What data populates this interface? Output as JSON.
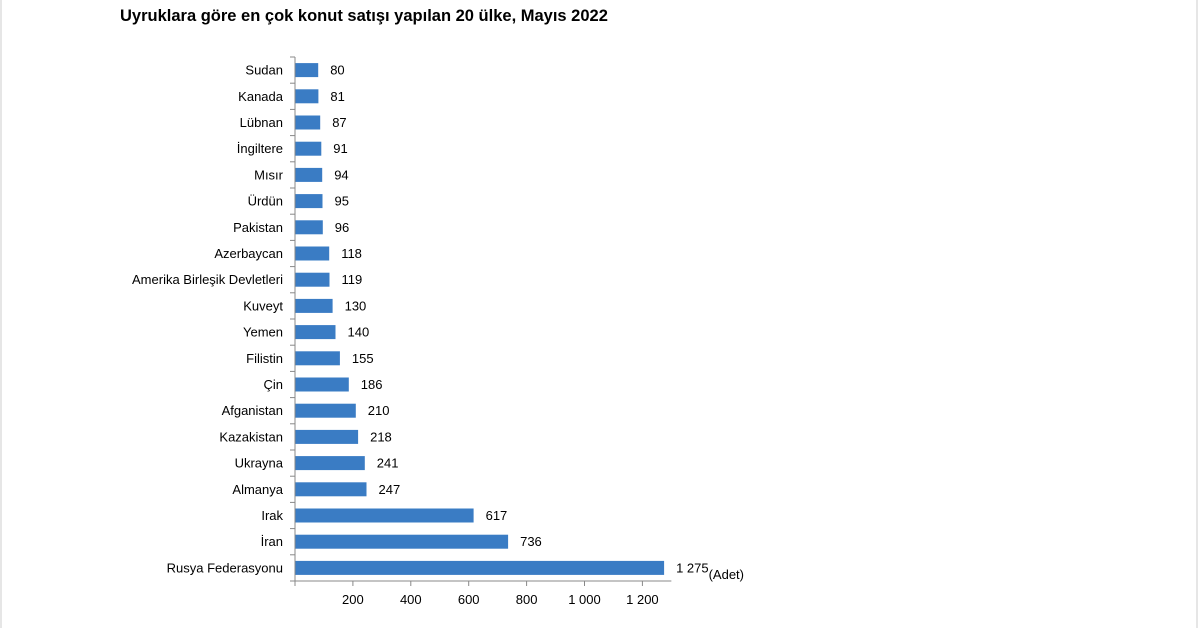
{
  "chart_data": {
    "type": "bar",
    "orientation": "horizontal",
    "title": "Uyruklara göre en çok konut satışı yapılan 20 ülke, Mayıs 2022",
    "unit": "(Adet)",
    "categories": [
      "Sudan",
      "Kanada",
      "Lübnan",
      "İngiltere",
      "Mısır",
      "Ürdün",
      "Pakistan",
      "Azerbaycan",
      "Amerika Birleşik Devletleri",
      "Kuveyt",
      "Yemen",
      "Filistin",
      "Çin",
      "Afganistan",
      "Kazakistan",
      "Ukrayna",
      "Almanya",
      "Irak",
      "İran",
      "Rusya Federasyonu"
    ],
    "values": [
      80,
      81,
      87,
      91,
      94,
      95,
      96,
      118,
      119,
      130,
      140,
      155,
      186,
      210,
      218,
      241,
      247,
      617,
      736,
      1275
    ],
    "value_labels": [
      "80",
      "81",
      "87",
      "91",
      "94",
      "95",
      "96",
      "118",
      "119",
      "130",
      "140",
      "155",
      "186",
      "210",
      "218",
      "241",
      "247",
      "617",
      "736",
      "1 275"
    ],
    "x_ticks": [
      200,
      400,
      600,
      800,
      1000,
      1200
    ],
    "x_tick_labels": [
      "200",
      "400",
      "600",
      "800",
      "1 000",
      "1 200"
    ],
    "xlim": [
      0,
      1300
    ],
    "bar_color": "#3a7cc4",
    "grid": false,
    "legend": "none"
  }
}
